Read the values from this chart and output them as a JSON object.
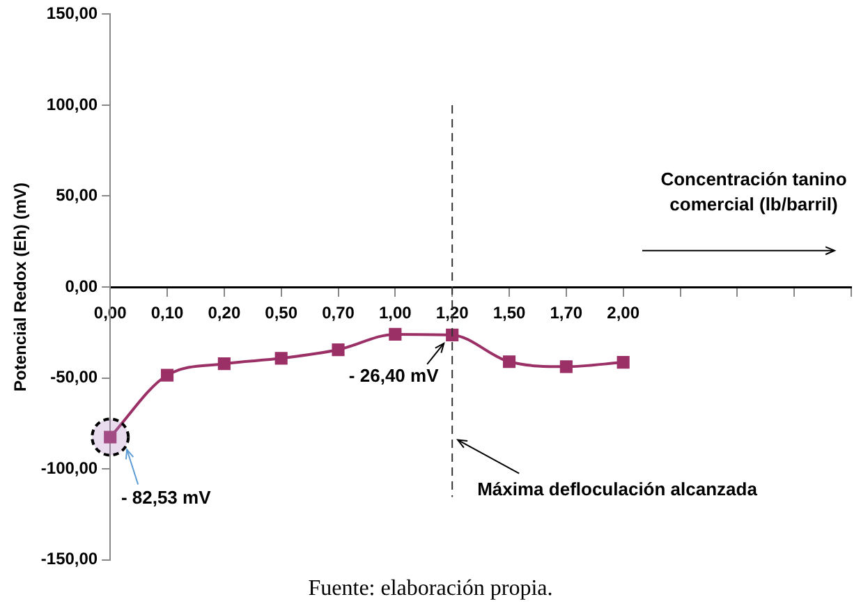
{
  "chart_data": {
    "type": "line",
    "categories": [
      "0,00",
      "0,10",
      "0,20",
      "0,50",
      "0,70",
      "1,00",
      "1,20",
      "1,50",
      "1,70",
      "2,00",
      null,
      null,
      null,
      null
    ],
    "series": [
      {
        "color": "#9b3067",
        "values": [
          -82.53,
          -48.5,
          -42.2,
          -39.2,
          -34.5,
          -26,
          -26.4,
          -41.1,
          -43.8,
          -41.4,
          null,
          null,
          null,
          null
        ]
      }
    ],
    "xlabel": "Concentración tanino comercial (lb/barril)",
    "ylabel": "Potencial Redox (Eh) (mV)",
    "ylim": [
      -150,
      150
    ],
    "yticks": [
      {
        "value": -150,
        "label": "-150,00"
      },
      {
        "value": -100,
        "label": "-100,00"
      },
      {
        "value": -50,
        "label": "-50,00"
      },
      {
        "value": 0,
        "label": "0,00"
      },
      {
        "value": 50,
        "label": "50,00"
      },
      {
        "value": 100,
        "label": "100,00"
      },
      {
        "value": 150,
        "label": "150,00"
      }
    ],
    "ref_lines": [
      {
        "axis": "x",
        "value": "1,20",
        "label": "Máxima defloculación alcanzada",
        "line_style": "dashed",
        "color": "#333333"
      }
    ],
    "annotations": [
      {
        "text": "- 82,53 mV",
        "x": "0,00",
        "y": -82.53
      },
      {
        "text": "- 26,40 mV",
        "x": "1,20",
        "y": -26.4
      },
      "Fuente: elaboración propia."
    ],
    "marker": "square",
    "line_style": "solid",
    "grid": false,
    "legend": false
  }
}
